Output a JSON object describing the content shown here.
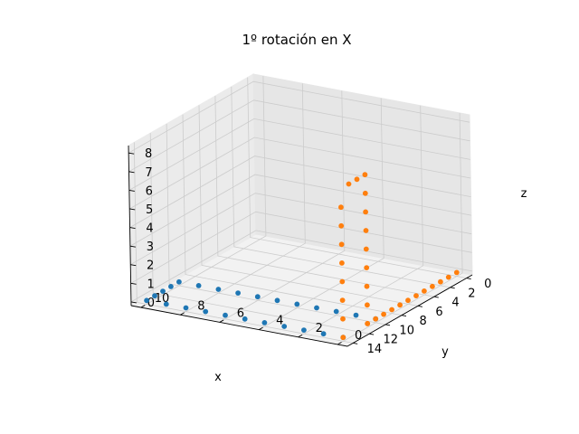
{
  "chart_data": {
    "type": "scatter",
    "projection": "3d",
    "title": "1º rotación en X",
    "xlabel": "x",
    "ylabel": "y",
    "zlabel": "z",
    "xlim": [
      -0.7,
      14.7
    ],
    "ylim": [
      -0.5,
      10.5
    ],
    "zlim": [
      -0.2,
      8.4
    ],
    "xticks": [
      0,
      2,
      4,
      6,
      8,
      10,
      12,
      14
    ],
    "yticks": [
      0,
      2,
      4,
      6,
      8,
      10
    ],
    "zticks": [
      0,
      1,
      2,
      3,
      4,
      5,
      6,
      7,
      8
    ],
    "grid": true,
    "series": [
      {
        "color": "#1f77b4",
        "points": [
          [
            10,
            0,
            0
          ],
          [
            10,
            1,
            0
          ],
          [
            10,
            2,
            0
          ],
          [
            10,
            3,
            0
          ],
          [
            10,
            4,
            0
          ],
          [
            10,
            5,
            0
          ],
          [
            10,
            6,
            0
          ],
          [
            10,
            7,
            0
          ],
          [
            10,
            8,
            0
          ],
          [
            10,
            9,
            0
          ],
          [
            10,
            10,
            0
          ],
          [
            14,
            0,
            0
          ],
          [
            14,
            1,
            0
          ],
          [
            14,
            2,
            0
          ],
          [
            14,
            3,
            0
          ],
          [
            14,
            4,
            0
          ],
          [
            14,
            5,
            0
          ],
          [
            14,
            6,
            0
          ],
          [
            14,
            7,
            0
          ],
          [
            14,
            8,
            0
          ],
          [
            14,
            9,
            0
          ],
          [
            14,
            10,
            0
          ],
          [
            11,
            10,
            0
          ],
          [
            12,
            10,
            0
          ],
          [
            13,
            10,
            0
          ]
        ]
      },
      {
        "color": "#ff7f0e",
        "points": [
          [
            0,
            0,
            0
          ],
          [
            1,
            0,
            0
          ],
          [
            2,
            0,
            0
          ],
          [
            3,
            0,
            0
          ],
          [
            4,
            0,
            0
          ],
          [
            5,
            0,
            0
          ],
          [
            6,
            0,
            0
          ],
          [
            7,
            0,
            0
          ],
          [
            8,
            0,
            0
          ],
          [
            9,
            0,
            0
          ],
          [
            10,
            0,
            0
          ],
          [
            11,
            0,
            0
          ],
          [
            11,
            0,
            0
          ],
          [
            11,
            0,
            1
          ],
          [
            11,
            0,
            2
          ],
          [
            11,
            0,
            3
          ],
          [
            11,
            0,
            4
          ],
          [
            11,
            0,
            5
          ],
          [
            11,
            0,
            6
          ],
          [
            11,
            0,
            7
          ],
          [
            11,
            0,
            8
          ],
          [
            14,
            0,
            0
          ],
          [
            14,
            0,
            1
          ],
          [
            14,
            0,
            2
          ],
          [
            14,
            0,
            3
          ],
          [
            14,
            0,
            4
          ],
          [
            14,
            0,
            5
          ],
          [
            14,
            0,
            6
          ],
          [
            14,
            0,
            7
          ],
          [
            12,
            0,
            8
          ],
          [
            13,
            0,
            8
          ]
        ]
      }
    ]
  }
}
